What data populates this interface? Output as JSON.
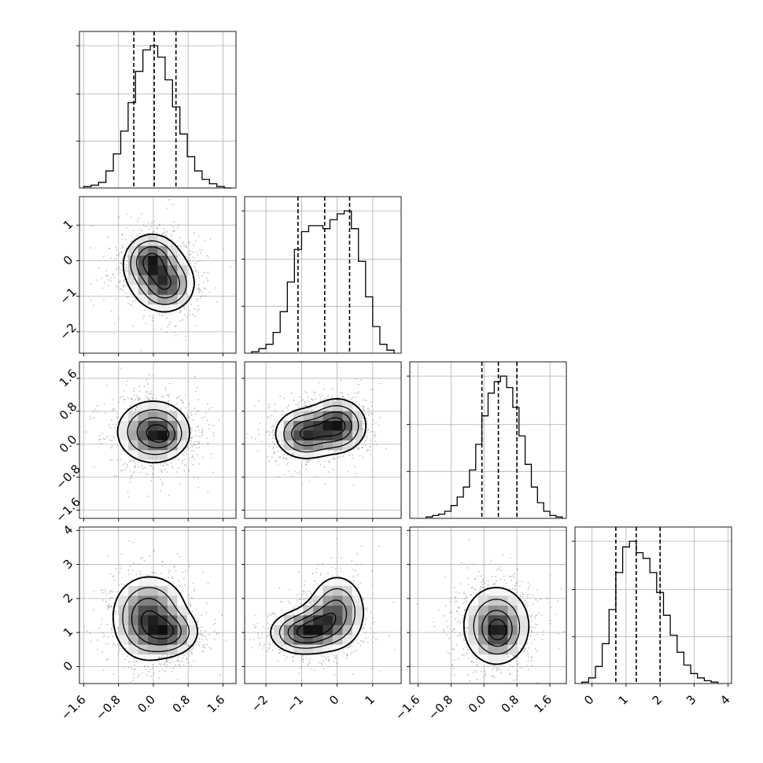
{
  "chart_data": {
    "type": "corner",
    "title": "",
    "grid": true,
    "parameters": [
      {
        "index": 0,
        "range": [
          -1.7,
          1.9
        ],
        "ticks": [
          -1.6,
          -0.8,
          0.0,
          0.8,
          1.6
        ],
        "tick_labels": [
          "−1.6",
          "−0.8",
          "0.0",
          "0.8",
          "1.6"
        ],
        "mean": 0.0,
        "sd": 0.5,
        "quantiles": [
          -0.45,
          0.02,
          0.52
        ]
      },
      {
        "index": 1,
        "range": [
          -2.6,
          1.8
        ],
        "ticks": [
          -2,
          -1,
          0,
          1
        ],
        "tick_labels": [
          "−2",
          "−1",
          "0",
          "1"
        ],
        "mean": -0.45,
        "sd": 0.65,
        "quantiles": [
          -1.1,
          -0.35,
          0.35
        ]
      },
      {
        "index": 2,
        "range": [
          -1.8,
          2.0
        ],
        "ticks": [
          -1.6,
          -0.8,
          0.0,
          0.8,
          1.6
        ],
        "tick_labels": [
          "−1.6",
          "−0.8",
          "0.0",
          "0.8",
          "1.6"
        ],
        "mean": 0.35,
        "sd": 0.45,
        "quantiles": [
          -0.05,
          0.35,
          0.8
        ]
      },
      {
        "index": 3,
        "range": [
          -0.5,
          4.1
        ],
        "ticks": [
          0,
          1,
          2,
          3,
          4
        ],
        "tick_labels": [
          "0",
          "1",
          "2",
          "3",
          "4"
        ],
        "mean": 1.3,
        "sd": 0.65,
        "quantiles": [
          0.7,
          1.3,
          2.0
        ]
      }
    ],
    "histograms": [
      {
        "param": 0,
        "bin_edges": [
          -1.6,
          -1.43,
          -1.26,
          -1.09,
          -0.92,
          -0.75,
          -0.58,
          -0.41,
          -0.24,
          -0.07,
          0.1,
          0.27,
          0.44,
          0.61,
          0.78,
          0.95,
          1.12,
          1.29,
          1.46,
          1.63,
          1.8
        ],
        "counts": [
          1,
          2,
          4,
          12,
          24,
          40,
          60,
          82,
          97,
          100,
          92,
          76,
          57,
          38,
          22,
          12,
          6,
          3,
          1,
          0
        ]
      },
      {
        "param": 1,
        "bin_edges": [
          -2.4,
          -2.2,
          -2.0,
          -1.8,
          -1.6,
          -1.4,
          -1.2,
          -1.0,
          -0.8,
          -0.6,
          -0.4,
          -0.2,
          0.0,
          0.2,
          0.4,
          0.6,
          0.8,
          1.0,
          1.2,
          1.4,
          1.6
        ],
        "counts": [
          1,
          3,
          6,
          14,
          28,
          48,
          70,
          82,
          86,
          86,
          84,
          90,
          94,
          96,
          84,
          62,
          38,
          18,
          6,
          2
        ]
      },
      {
        "param": 2,
        "bin_edges": [
          -1.4,
          -1.25,
          -1.1,
          -0.95,
          -0.8,
          -0.65,
          -0.5,
          -0.35,
          -0.2,
          -0.05,
          0.1,
          0.25,
          0.4,
          0.55,
          0.7,
          0.85,
          1.0,
          1.15,
          1.3,
          1.45,
          1.6,
          1.75,
          1.9
        ],
        "counts": [
          1,
          2,
          3,
          5,
          9,
          15,
          22,
          34,
          52,
          72,
          88,
          96,
          100,
          92,
          78,
          58,
          38,
          22,
          11,
          5,
          2,
          1
        ]
      },
      {
        "param": 3,
        "bin_edges": [
          -0.3,
          -0.1,
          0.1,
          0.3,
          0.5,
          0.7,
          0.9,
          1.1,
          1.3,
          1.5,
          1.7,
          1.9,
          2.1,
          2.3,
          2.5,
          2.7,
          2.9,
          3.1,
          3.3,
          3.5,
          3.7
        ],
        "counts": [
          1,
          4,
          12,
          28,
          52,
          78,
          96,
          100,
          92,
          88,
          78,
          64,
          48,
          34,
          22,
          13,
          7,
          4,
          2,
          1
        ]
      }
    ],
    "pairs": [
      {
        "x": 0,
        "y": 1,
        "modes": [
          {
            "x": -0.05,
            "y": 0.0,
            "sx": 0.28,
            "sy": 0.35,
            "w": 1.0
          },
          {
            "x": 0.3,
            "y": -0.7,
            "sx": 0.3,
            "sy": 0.35,
            "w": 0.8
          },
          {
            "x": 0.1,
            "y": -0.4,
            "sx": 0.5,
            "sy": 0.6,
            "w": 0.35
          }
        ],
        "contour_levels": [
          0.12,
          0.28,
          0.5,
          0.78
        ]
      },
      {
        "x": 0,
        "y": 2,
        "modes": [
          {
            "x": 0.0,
            "y": 0.3,
            "sx": 0.42,
            "sy": 0.38,
            "w": 1.0
          },
          {
            "x": 0.25,
            "y": 0.2,
            "sx": 0.22,
            "sy": 0.2,
            "w": 0.35
          }
        ],
        "contour_levels": [
          0.12,
          0.3,
          0.55,
          0.8
        ]
      },
      {
        "x": 1,
        "y": 2,
        "modes": [
          {
            "x": -0.9,
            "y": 0.25,
            "sx": 0.42,
            "sy": 0.3,
            "w": 0.9
          },
          {
            "x": 0.0,
            "y": 0.45,
            "sx": 0.4,
            "sy": 0.32,
            "w": 1.0
          }
        ],
        "contour_levels": [
          0.12,
          0.3,
          0.55,
          0.8
        ]
      },
      {
        "x": 0,
        "y": 3,
        "modes": [
          {
            "x": -0.2,
            "y": 1.3,
            "sx": 0.38,
            "sy": 0.6,
            "w": 0.85
          },
          {
            "x": 0.35,
            "y": 1.0,
            "sx": 0.35,
            "sy": 0.35,
            "w": 1.0
          },
          {
            "x": 0.0,
            "y": 1.8,
            "sx": 0.45,
            "sy": 0.5,
            "w": 0.45
          }
        ],
        "contour_levels": [
          0.12,
          0.3,
          0.55,
          0.8
        ]
      },
      {
        "x": 1,
        "y": 3,
        "modes": [
          {
            "x": -1.0,
            "y": 1.0,
            "sx": 0.45,
            "sy": 0.32,
            "w": 1.0
          },
          {
            "x": 0.0,
            "y": 1.6,
            "sx": 0.4,
            "sy": 0.55,
            "w": 0.85
          },
          {
            "x": -0.5,
            "y": 1.25,
            "sx": 0.35,
            "sy": 0.35,
            "w": 0.55
          }
        ],
        "contour_levels": [
          0.12,
          0.3,
          0.55,
          0.8
        ]
      },
      {
        "x": 2,
        "y": 3,
        "modes": [
          {
            "x": 0.3,
            "y": 1.2,
            "sx": 0.42,
            "sy": 0.6,
            "w": 1.0
          },
          {
            "x": 0.35,
            "y": 1.0,
            "sx": 0.22,
            "sy": 0.3,
            "w": 0.5
          }
        ],
        "contour_levels": [
          0.12,
          0.3,
          0.55,
          0.8
        ]
      }
    ],
    "colors": {
      "contour": "#000000",
      "density": "#000000",
      "points": "#8c8c8c",
      "grid": "#b0b0b0"
    }
  }
}
